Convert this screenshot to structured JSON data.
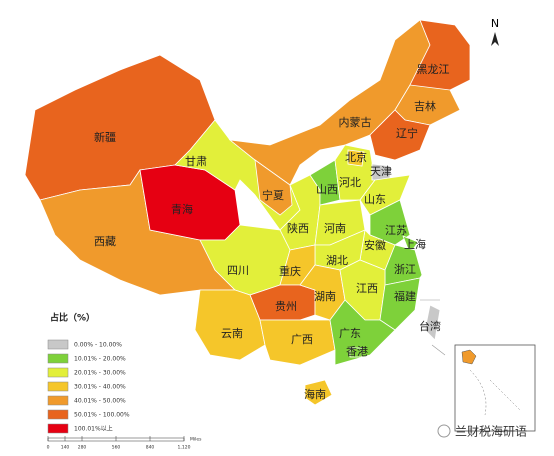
{
  "map": {
    "legend": {
      "title": "占比（%）",
      "items": [
        {
          "label": "0.00% - 10.00%",
          "color": "#c8c8c8"
        },
        {
          "label": "10.01% - 20.00%",
          "color": "#7ed13a"
        },
        {
          "label": "20.01% - 30.00%",
          "color": "#e2ef3a"
        },
        {
          "label": "30.01% - 40.00%",
          "color": "#f5c62a"
        },
        {
          "label": "40.01% - 50.00%",
          "color": "#f09a2c"
        },
        {
          "label": "50.01% - 100.00%",
          "color": "#e8641e"
        },
        {
          "label": "100.01%以上",
          "color": "#e60012"
        }
      ]
    },
    "regions": [
      {
        "name": "新疆",
        "color": "#e8641e"
      },
      {
        "name": "西藏",
        "color": "#f09a2c"
      },
      {
        "name": "青海",
        "color": "#e60012"
      },
      {
        "name": "甘肃",
        "color": "#e2ef3a"
      },
      {
        "name": "内蒙古",
        "color": "#f09a2c"
      },
      {
        "name": "黑龙江",
        "color": "#e8641e"
      },
      {
        "name": "吉林",
        "color": "#f09a2c"
      },
      {
        "name": "辽宁",
        "color": "#e8641e"
      },
      {
        "name": "宁夏",
        "color": "#f09a2c"
      },
      {
        "name": "陕西",
        "color": "#e2ef3a"
      },
      {
        "name": "山西",
        "color": "#7ed13a"
      },
      {
        "name": "河北",
        "color": "#e2ef3a"
      },
      {
        "name": "北京",
        "color": "#f5c62a"
      },
      {
        "name": "天津",
        "color": "#c8c8c8"
      },
      {
        "name": "山东",
        "color": "#e2ef3a"
      },
      {
        "name": "河南",
        "color": "#e2ef3a"
      },
      {
        "name": "江苏",
        "color": "#7ed13a"
      },
      {
        "name": "上海",
        "color": "#7ed13a"
      },
      {
        "name": "安徽",
        "color": "#e2ef3a"
      },
      {
        "name": "浙江",
        "color": "#7ed13a"
      },
      {
        "name": "湖北",
        "color": "#e2ef3a"
      },
      {
        "name": "四川",
        "color": "#e2ef3a"
      },
      {
        "name": "重庆",
        "color": "#f5c62a"
      },
      {
        "name": "贵州",
        "color": "#e8641e"
      },
      {
        "name": "湖南",
        "color": "#f5c62a"
      },
      {
        "name": "江西",
        "color": "#e2ef3a"
      },
      {
        "name": "福建",
        "color": "#7ed13a"
      },
      {
        "name": "云南",
        "color": "#f5c62a"
      },
      {
        "name": "广西",
        "color": "#f5c62a"
      },
      {
        "name": "广东",
        "color": "#7ed13a"
      },
      {
        "name": "海南",
        "color": "#f5c62a"
      },
      {
        "name": "台湾",
        "color": "#c8c8c8"
      },
      {
        "name": "香港",
        "color": "#7ed13a"
      }
    ],
    "north": "N",
    "scale": {
      "labels": [
        "0",
        "140",
        "280",
        "560",
        "840",
        "1,120"
      ],
      "unit": "Miles"
    },
    "watermark": "兰财税海研语"
  }
}
